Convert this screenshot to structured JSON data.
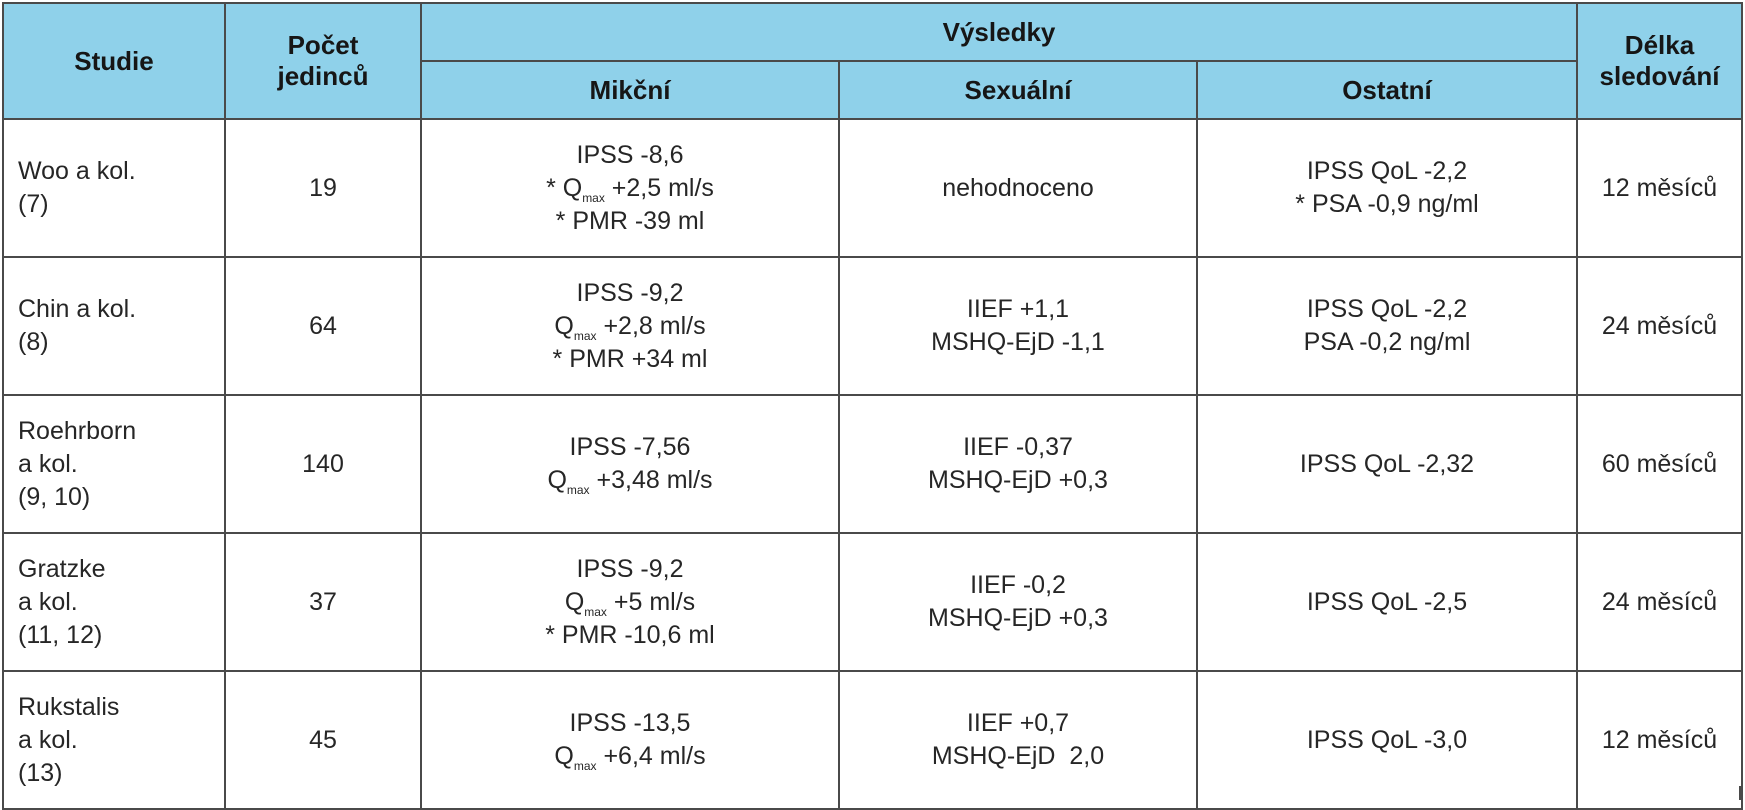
{
  "headers": {
    "studie": "Studie",
    "pocet": [
      "Počet",
      "jedinců"
    ],
    "vysledky": "Výsledky",
    "delka": [
      "Délka",
      "sledování"
    ],
    "mikcni": "Mikční",
    "sexualni": "Sexuální",
    "ostatni": "Ostatní"
  },
  "rows": [
    {
      "study": [
        "Woo a kol.",
        "(7)"
      ],
      "count": "19",
      "mikcni": [
        {
          "pre": "IPSS -8,6"
        },
        {
          "pre": "* Q",
          "sub": "max",
          "post": " +2,5 ml/s"
        },
        {
          "pre": "* PMR -39 ml"
        }
      ],
      "sexualni": [
        "nehodnoceno"
      ],
      "ostatni": [
        "IPSS QoL -2,2",
        "* PSA -0,9 ng/ml"
      ],
      "duration": "12 měsíců"
    },
    {
      "study": [
        "Chin a kol.",
        "(8)"
      ],
      "count": "64",
      "mikcni": [
        {
          "pre": "IPSS -9,2"
        },
        {
          "pre": "Q",
          "sub": "max",
          "post": " +2,8 ml/s"
        },
        {
          "pre": "* PMR +34 ml"
        }
      ],
      "sexualni": [
        "IIEF +1,1",
        "MSHQ-EjD -1,1"
      ],
      "ostatni": [
        "IPSS QoL -2,2",
        "PSA -0,2 ng/ml"
      ],
      "duration": "24 měsíců"
    },
    {
      "study": [
        "Roehrborn",
        "a kol.",
        "(9, 10)"
      ],
      "count": "140",
      "mikcni": [
        {
          "pre": "IPSS -7,56"
        },
        {
          "pre": "Q",
          "sub": "max",
          "post": " +3,48 ml/s"
        }
      ],
      "sexualni": [
        "IIEF -0,37",
        "MSHQ-EjD +0,3"
      ],
      "ostatni": [
        "IPSS QoL -2,32"
      ],
      "duration": "60 měsíců"
    },
    {
      "study": [
        "Gratzke",
        "a kol.",
        "(11, 12)"
      ],
      "count": "37",
      "mikcni": [
        {
          "pre": "IPSS -9,2"
        },
        {
          "pre": "Q",
          "sub": "max",
          "post": " +5 ml/s"
        },
        {
          "pre": "* PMR -10,6 ml"
        }
      ],
      "sexualni": [
        "IIEF -0,2",
        "MSHQ-EjD +0,3"
      ],
      "ostatni": [
        "IPSS QoL -2,5"
      ],
      "duration": "24 měsíců"
    },
    {
      "study": [
        "Rukstalis",
        "a kol.",
        "(13)"
      ],
      "count": "45",
      "mikcni": [
        {
          "pre": "IPSS -13,5"
        },
        {
          "pre": "Q",
          "sub": "max",
          "post": " +6,4 ml/s"
        }
      ],
      "sexualni": [
        "IIEF +0,7",
        "MSHQ-EjD  2,0"
      ],
      "ostatni": [
        "IPSS QoL -3,0"
      ],
      "duration": "12 měsíců"
    }
  ],
  "colors": {
    "header_bg": "#8fd1ea",
    "border": "#4a4a4a"
  }
}
